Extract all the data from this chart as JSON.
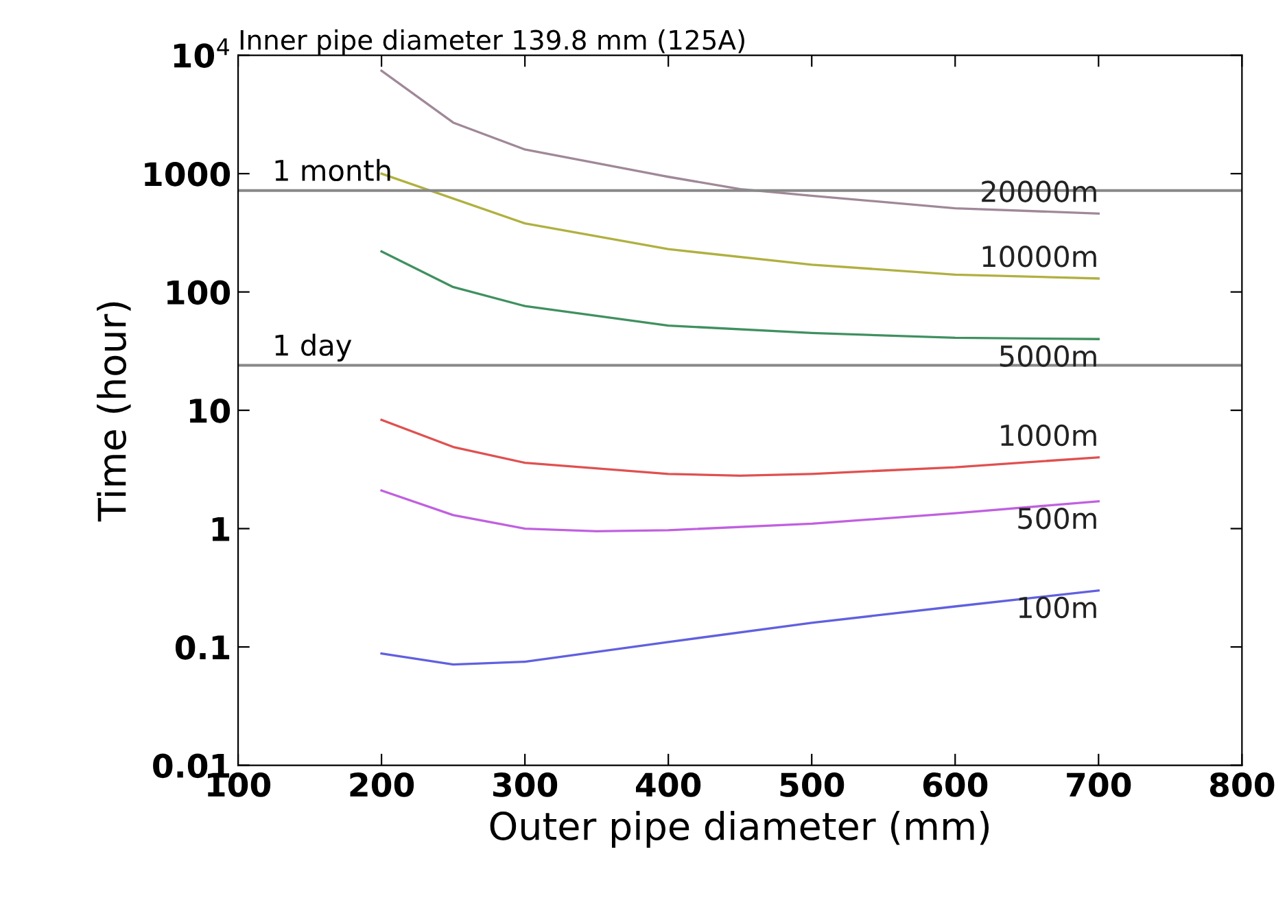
{
  "chart_data": {
    "type": "line",
    "title": "Inner pipe diameter 139.8 mm (125A)",
    "xlabel": "Outer pipe diameter (mm)",
    "ylabel": "Time (hour)",
    "log": "y",
    "grid": false,
    "legend": false,
    "marker": "none",
    "line_style": "solid",
    "xlim": [
      100,
      800
    ],
    "xticks": [
      100,
      200,
      300,
      400,
      500,
      600,
      700,
      800
    ],
    "ylim": [
      0.01,
      10000
    ],
    "yticks": [
      0.01,
      0.1,
      1,
      10,
      100,
      1000,
      {
        "value": 10000,
        "label": "10$^{4}$"
      }
    ],
    "ref_lines": [
      {
        "axis": "y",
        "value": 720,
        "label": "1 month",
        "color": "#888888"
      },
      {
        "axis": "y",
        "value": 24,
        "label": "1 day",
        "color": "#888888"
      }
    ],
    "series": [
      {
        "name": "20000m",
        "color": "#a08898",
        "x": [
          200,
          250,
          300,
          400,
          450,
          500,
          600,
          700
        ],
        "values": [
          7400,
          2700,
          1600,
          940,
          740,
          650,
          510,
          460
        ]
      },
      {
        "name": "10000m",
        "color": "#b0b040",
        "x": [
          200,
          300,
          400,
          500,
          600,
          700
        ],
        "values": [
          1000,
          380,
          230,
          170,
          140,
          130
        ]
      },
      {
        "name": "5000m",
        "color": "#409060",
        "x": [
          200,
          250,
          300,
          400,
          500,
          600,
          700
        ],
        "values": [
          220,
          110,
          76,
          52,
          45,
          41,
          40
        ]
      },
      {
        "name": "1000m",
        "color": "#e05050",
        "x": [
          200,
          250,
          300,
          400,
          450,
          500,
          600,
          700
        ],
        "values": [
          8.3,
          4.9,
          3.6,
          2.9,
          2.8,
          2.9,
          3.3,
          4.0
        ]
      },
      {
        "name": "500m",
        "color": "#c060e0",
        "x": [
          200,
          250,
          300,
          350,
          400,
          500,
          600,
          700
        ],
        "values": [
          2.1,
          1.3,
          1.0,
          0.95,
          0.97,
          1.1,
          1.35,
          1.7
        ]
      },
      {
        "name": "100m",
        "color": "#6060e0",
        "x": [
          200,
          250,
          300,
          400,
          500,
          600,
          700
        ],
        "values": [
          0.088,
          0.071,
          0.075,
          0.11,
          0.16,
          0.22,
          0.3
        ]
      }
    ]
  }
}
